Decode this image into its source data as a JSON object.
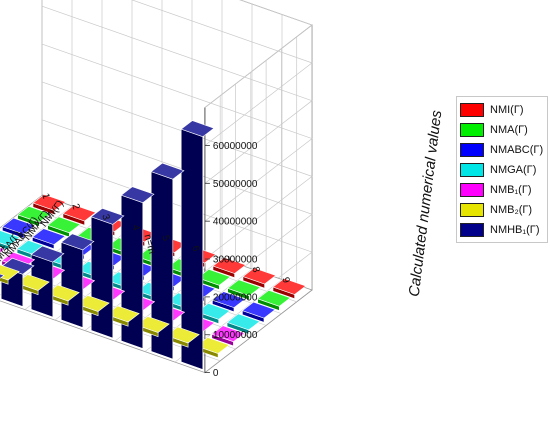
{
  "chart_data": {
    "type": "bar",
    "subtype": "3d-bar",
    "x_axis_label": "n=m",
    "x_ticks": [
      "1",
      "2",
      "3",
      "4",
      "5",
      "6",
      "7",
      "8",
      "9"
    ],
    "y_ticks": [
      "NMI(Γ)",
      "NMA(Γ)",
      "NMABC(Γ)",
      "NMGA(Γ)",
      "NMB₁(Γ)",
      "NMB₂(Γ)",
      "NMHB₁(Γ)"
    ],
    "z_axis_label": "Calculated numerical values",
    "z_ticks": [
      "0",
      "10000000",
      "20000000",
      "30000000",
      "40000000",
      "50000000",
      "60000000"
    ],
    "zlim": [
      0,
      70000000
    ],
    "grid": true,
    "legend_position": "right",
    "series": [
      {
        "name": "NMI(Γ)",
        "color": "#ff0000",
        "values": [
          2,
          3,
          4,
          5,
          6,
          7,
          8,
          9,
          10
        ]
      },
      {
        "name": "NMA(Γ)",
        "color": "#00ee00",
        "values": [
          200,
          900,
          2600,
          6000,
          12000,
          21500,
          36000,
          56000,
          390000
        ]
      },
      {
        "name": "NMABC(Γ)",
        "color": "#0000ff",
        "values": [
          20,
          70,
          150,
          270,
          440,
          650,
          920,
          1250,
          1650
        ]
      },
      {
        "name": "NMGA(Γ)",
        "color": "#00e5e5",
        "values": [
          10,
          30,
          70,
          120,
          190,
          280,
          390,
          520,
          680
        ]
      },
      {
        "name": "NMB₁(Γ)",
        "color": "#ff00ff",
        "values": [
          4,
          12,
          25,
          45,
          70,
          100,
          135,
          175,
          220
        ]
      },
      {
        "name": "NMB₂(Γ)",
        "color": "#e5e500",
        "values": [
          1500,
          8000,
          25000,
          60000,
          125000,
          230000,
          390000,
          620000,
          950000
        ]
      },
      {
        "name": "NMHB₁(Γ)",
        "color": "#00008b",
        "values": [
          800000,
          3200000,
          8500000,
          14500000,
          20500000,
          30000000,
          38500000,
          47500000,
          61500000
        ]
      }
    ]
  },
  "legend": {
    "items": [
      {
        "label": "NMI(Γ)",
        "color": "#ff0000"
      },
      {
        "label": "NMA(Γ)",
        "color": "#00ee00"
      },
      {
        "label": "NMABC(Γ)",
        "color": "#0000ff"
      },
      {
        "label": "NMGA(Γ)",
        "color": "#00e5e5"
      },
      {
        "label": "NMB₁(Γ)",
        "color": "#ff00ff"
      },
      {
        "label": "NMB₂(Γ)",
        "color": "#e5e500"
      },
      {
        "label": "NMHB₁(Γ)",
        "color": "#00008b"
      }
    ]
  }
}
